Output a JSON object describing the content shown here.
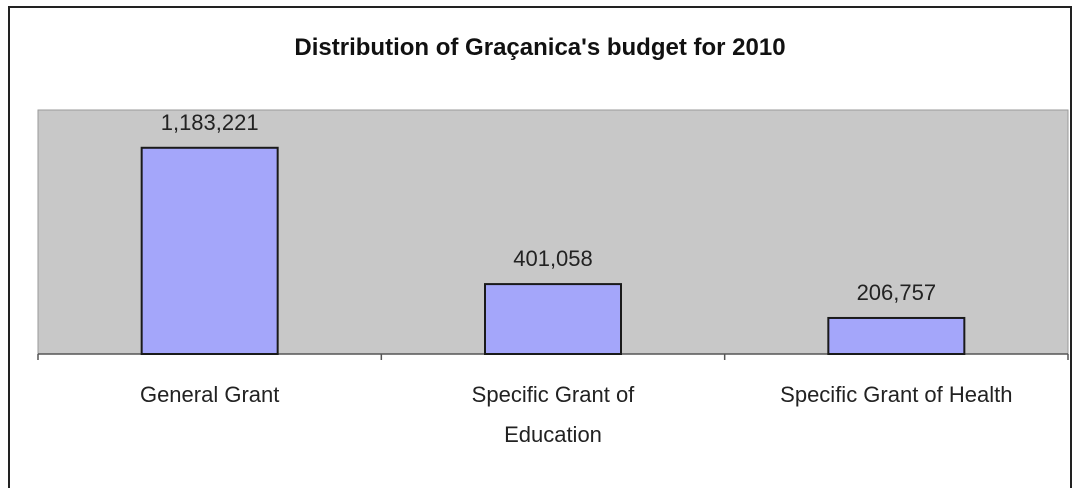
{
  "chart_data": {
    "type": "bar",
    "title": "Distribution of Graçanica's budget for 2010",
    "categories": [
      "General Grant",
      "Specific Grant of Education",
      "Specific Grant of Health"
    ],
    "category_lines": [
      [
        "General Grant"
      ],
      [
        "Specific Grant of",
        "Education"
      ],
      [
        "Specific Grant of Health"
      ]
    ],
    "values": [
      1183221,
      401058,
      206757
    ],
    "value_labels": [
      "1,183,221",
      "401,058",
      "206,757"
    ],
    "xlabel": "",
    "ylabel": "",
    "ylim": [
      0,
      1400000
    ],
    "grid": false,
    "legend": "none",
    "colors": {
      "plot_background": "#c8c8c8",
      "bar_fill": "#a4a6fa",
      "bar_stroke": "#1a1a1a",
      "text": "#222222"
    }
  }
}
